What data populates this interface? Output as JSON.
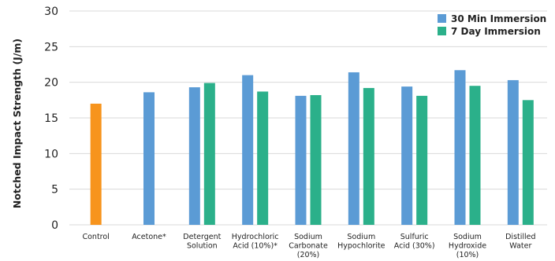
{
  "chart_data": {
    "type": "bar",
    "ylabel": "Notched Impact Strength (J/m)",
    "ylim": [
      0,
      30
    ],
    "yticks": [
      0,
      5,
      10,
      15,
      20,
      25,
      30
    ],
    "grid": true,
    "legend_position": "top-right",
    "categories": [
      [
        "Control"
      ],
      [
        "Acetone*"
      ],
      [
        "Detergent",
        "Solution"
      ],
      [
        "Hydrochloric",
        "Acid (10%)*"
      ],
      [
        "Sodium",
        "Carbonate",
        "(20%)"
      ],
      [
        "Sodium",
        "Hypochlorite"
      ],
      [
        "Sulfuric",
        "Acid (30%)"
      ],
      [
        "Sodium",
        "Hydroxide",
        "(10%)"
      ],
      [
        "Distilled",
        "Water"
      ]
    ],
    "control": {
      "value": 17.0,
      "color": "#f7941d"
    },
    "series": [
      {
        "name": "30 Min Immersion",
        "color": "#5b9bd5",
        "values": [
          null,
          18.6,
          19.3,
          21.0,
          18.1,
          21.4,
          19.4,
          21.7,
          20.3
        ]
      },
      {
        "name": "7 Day Immersion",
        "color": "#2bb08a",
        "values": [
          null,
          null,
          19.9,
          18.7,
          18.2,
          19.2,
          18.1,
          19.5,
          17.5
        ]
      }
    ]
  }
}
